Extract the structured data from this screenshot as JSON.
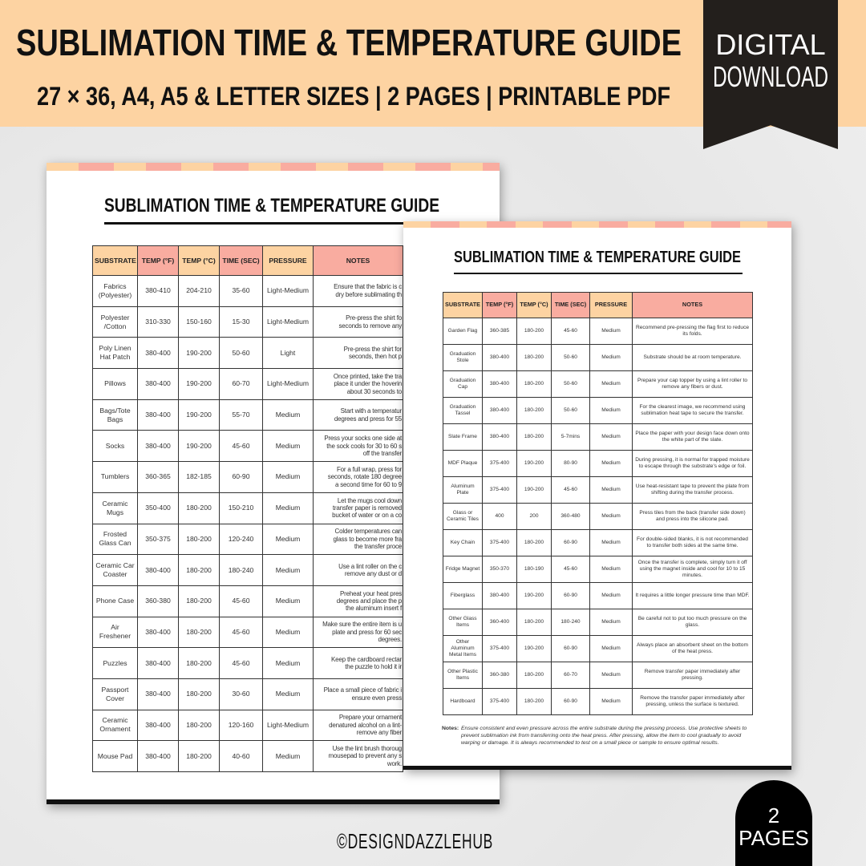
{
  "banner": {
    "title": "SUBLIMATION TIME & TEMPERATURE GUIDE",
    "subtitle": "27 × 36, A4, A5 & LETTER SIZES | 2 PAGES | PRINTABLE PDF",
    "bg_color": "#fdd3a2"
  },
  "ribbon": {
    "line1": "DIGITAL",
    "line2": "DOWNLOAD"
  },
  "headers": [
    "SUBSTRATE",
    "TEMP (°F)",
    "TEMP (°C)",
    "TIME (SEC)",
    "PRESSURE",
    "NOTES"
  ],
  "page1": {
    "title": "SUBLIMATION TIME  & TEMPERATURE GUIDE",
    "rows": [
      [
        "Fabrics (Polyester)",
        "380-410",
        "204-210",
        "35-60",
        "Light-Medium",
        "Ensure that the fabric is c\ndry before sublimating th"
      ],
      [
        "Polyester /Cotton",
        "310-330",
        "150-160",
        "15-30",
        "Light-Medium",
        "Pre-press the shirt fo\nseconds to remove any"
      ],
      [
        "Poly Linen Hat Patch",
        "380-400",
        "190-200",
        "50-60",
        "Light",
        "Pre-press the shirt for\nseconds, then hot p"
      ],
      [
        "Pillows",
        "380-400",
        "190-200",
        "60-70",
        "Light-Medium",
        "Once printed, take the tra\nplace it under the hoverin\nabout 30 seconds to"
      ],
      [
        "Bags/Tote Bags",
        "380-400",
        "190-200",
        "55-70",
        "Medium",
        "Start with a temperatur\ndegrees and press for 55"
      ],
      [
        "Socks",
        "380-400",
        "190-200",
        "45-60",
        "Medium",
        "Press your socks one side at\nthe sock cools for 30 to 60 s\noff the transfer"
      ],
      [
        "Tumblers",
        "360-365",
        "182-185",
        "60-90",
        "Medium",
        "For a full wrap, press for\nseconds, rotate 180 degree\na second time for 60 to 9"
      ],
      [
        "Ceramic Mugs",
        "350-400",
        "180-200",
        "150-210",
        "Medium",
        "Let the mugs cool down\ntransfer paper is removed\nbucket of water or on a co"
      ],
      [
        "Frosted Glass Can",
        "350-375",
        "180-200",
        "120-240",
        "Medium",
        "Colder temperatures can\nglass to become more fra\nthe transfer proce"
      ],
      [
        "Ceramic Car Coaster",
        "380-400",
        "180-200",
        "180-240",
        "Medium",
        "Use a lint roller on the c\nremove any dust or d"
      ],
      [
        "Phone Case",
        "360-380",
        "180-200",
        "45-60",
        "Medium",
        "Preheat your heat pres\ndegrees and place the p\nthe aluminum insert f"
      ],
      [
        "Air Freshener",
        "380-400",
        "180-200",
        "45-60",
        "Medium",
        "Make sure the entire item is u\nplate and press for 60 sec\ndegrees."
      ],
      [
        "Puzzles",
        "380-400",
        "180-200",
        "45-60",
        "Medium",
        "Keep the cardboard rectar\nthe puzzle to hold it ir"
      ],
      [
        "Passport Cover",
        "380-400",
        "180-200",
        "30-60",
        "Medium",
        "Place a small piece of fabric i\nensure even press"
      ],
      [
        "Ceramic Ornament",
        "380-400",
        "180-200",
        "120-160",
        "Light-Medium",
        "Prepare your ornament\ndenatured alcohol on a lint-\nremove any fiber"
      ],
      [
        "Mouse Pad",
        "380-400",
        "180-200",
        "40-60",
        "Medium",
        "Use the lint brush thoroug\nmousepad to prevent any s\nwork."
      ]
    ]
  },
  "page2": {
    "title": "SUBLIMATION TIME  & TEMPERATURE GUIDE",
    "rows": [
      [
        "Garden Flag",
        "360-385",
        "180-200",
        "45-60",
        "Medium",
        "Recommend pre-pressing the flag first to reduce its folds."
      ],
      [
        "Graduation Stole",
        "380-400",
        "180-200",
        "50-60",
        "Medium",
        "Substrate should be at room temperature."
      ],
      [
        "Graduation Cap",
        "380-400",
        "180-200",
        "50-60",
        "Medium",
        "Prepare your cap topper by using a lint roller to remove any fibers or dust."
      ],
      [
        "Graduation Tassel",
        "380-400",
        "180-200",
        "50-60",
        "Medium",
        "For the clearest image, we recommend using sublimation heat tape to secure the transfer."
      ],
      [
        "Slate Frame",
        "380-400",
        "180-200",
        "5-7mins",
        "Medium",
        "Place the paper with your design face down onto the white part of the slate."
      ],
      [
        "MDF Plaque",
        "375-400",
        "190-200",
        "80-90",
        "Medium",
        "During pressing, it is normal for trapped moisture to escape through the substrate's edge or foil."
      ],
      [
        "Aluminum Plate",
        "375-400",
        "190-200",
        "45-60",
        "Medium",
        "Use heat-resistant tape to prevent the plate from shifting during the transfer process."
      ],
      [
        "Glass or Ceramic Tiles",
        "400",
        "200",
        "360-480",
        "Medium",
        "Press tiles from the back (transfer side down) and press into the silicone pad."
      ],
      [
        "Key Chain",
        "375-400",
        "180-200",
        "60-90",
        "Medium",
        "For double-sided blanks, it is not recommended to transfer both sides at the same time."
      ],
      [
        "Fridge Magnet",
        "350-370",
        "180-190",
        "45-60",
        "Medium",
        "Once the transfer is complete, simply turn it off using the magnet inside and cool for 10 to 15 minutes."
      ],
      [
        "Fiberglass",
        "380-400",
        "190-200",
        "60-90",
        "Medium",
        "It requires a little longer pressure time than MDF."
      ],
      [
        "Other Glass Items",
        "360-400",
        "180-200",
        "180-240",
        "Medium",
        "Be careful not to put too much pressure on the glass."
      ],
      [
        "Other Aluminum Metal Items",
        "375-400",
        "190-200",
        "60-90",
        "Medium",
        "Always place an absorbent sheet on the bottom of the heat press."
      ],
      [
        "Other Plastic Items",
        "360-380",
        "180-200",
        "60-70",
        "Medium",
        "Remove transfer paper immediately after pressing."
      ],
      [
        "Hardboard",
        "375-400",
        "180-200",
        "60-90",
        "Medium",
        "Remove the transfer paper immediately after pressing, unless the surface is textured."
      ]
    ],
    "notes_label": "Notes:",
    "notes_text": "Ensure consistent and even pressure across the entire substrate during the pressing process. Use protective sheets to prevent sublimation ink from transferring onto the heat press. After pressing, allow the item to cool gradually to avoid warping or damage. It is always recommended to test on a small piece or sample to ensure optimal results."
  },
  "footer": {
    "brand": "©DESIGNDAZZLEHUB"
  },
  "pages_badge": {
    "count": "2",
    "label": "PAGES"
  },
  "colors": {
    "peach": "#fdd3a2",
    "salmon": "#f9aca0",
    "dark": "#231f1c"
  }
}
